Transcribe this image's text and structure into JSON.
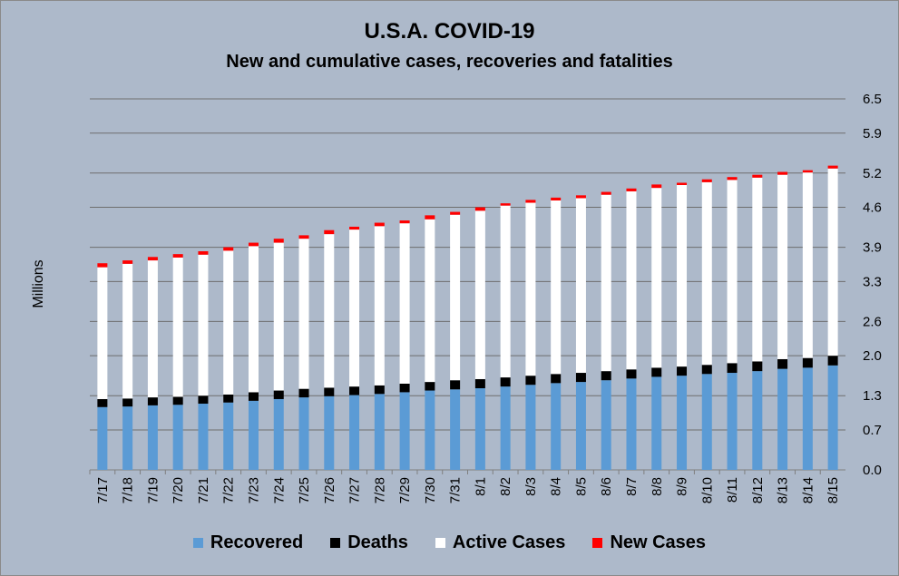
{
  "chart_data": {
    "type": "bar",
    "stacked": true,
    "title": "U.S.A. COVID-19",
    "subtitle": "New and cumulative cases, recoveries and fatalities",
    "ylabel": "Millions",
    "xlabel": "",
    "ylim": [
      0,
      6.5
    ],
    "yticks": [
      "0.0",
      "0.7",
      "1.3",
      "2.0",
      "2.6",
      "3.3",
      "3.9",
      "4.6",
      "5.2",
      "5.9",
      "6.5"
    ],
    "y_axis_side": "right",
    "grid": true,
    "legend_position": "bottom",
    "categories": [
      "7/17",
      "7/18",
      "7/19",
      "7/20",
      "7/21",
      "7/22",
      "7/23",
      "7/24",
      "7/25",
      "7/26",
      "7/27",
      "7/28",
      "7/29",
      "7/30",
      "7/31",
      "8/1",
      "8/2",
      "8/3",
      "8/4",
      "8/5",
      "8/6",
      "8/7",
      "8/8",
      "8/9",
      "8/10",
      "8/11",
      "8/12",
      "8/13",
      "8/14",
      "8/15"
    ],
    "series": [
      {
        "name": "Recovered",
        "color": "#5b9bd5",
        "values": [
          1.1,
          1.11,
          1.13,
          1.14,
          1.16,
          1.18,
          1.21,
          1.24,
          1.27,
          1.29,
          1.31,
          1.33,
          1.36,
          1.39,
          1.41,
          1.43,
          1.46,
          1.49,
          1.52,
          1.54,
          1.57,
          1.6,
          1.63,
          1.65,
          1.68,
          1.7,
          1.73,
          1.77,
          1.79,
          1.83
        ]
      },
      {
        "name": "Deaths",
        "color": "#000000",
        "values": [
          0.14,
          0.14,
          0.14,
          0.14,
          0.14,
          0.14,
          0.15,
          0.15,
          0.15,
          0.15,
          0.15,
          0.15,
          0.15,
          0.15,
          0.16,
          0.16,
          0.16,
          0.16,
          0.16,
          0.16,
          0.16,
          0.16,
          0.16,
          0.16,
          0.16,
          0.17,
          0.17,
          0.17,
          0.17,
          0.17
        ]
      },
      {
        "name": "Active Cases",
        "color": "#ffffff",
        "values": [
          2.31,
          2.36,
          2.4,
          2.44,
          2.47,
          2.52,
          2.56,
          2.59,
          2.63,
          2.69,
          2.75,
          2.79,
          2.81,
          2.85,
          2.9,
          2.95,
          3.01,
          3.03,
          3.04,
          3.06,
          3.09,
          3.12,
          3.15,
          3.18,
          3.2,
          3.21,
          3.22,
          3.23,
          3.25,
          3.28
        ]
      },
      {
        "name": "New Cases",
        "color": "#ff0000",
        "values": [
          0.07,
          0.06,
          0.06,
          0.06,
          0.06,
          0.06,
          0.06,
          0.07,
          0.06,
          0.07,
          0.05,
          0.06,
          0.05,
          0.07,
          0.05,
          0.06,
          0.04,
          0.05,
          0.05,
          0.05,
          0.05,
          0.05,
          0.06,
          0.04,
          0.05,
          0.05,
          0.05,
          0.05,
          0.04,
          0.05
        ]
      }
    ]
  }
}
